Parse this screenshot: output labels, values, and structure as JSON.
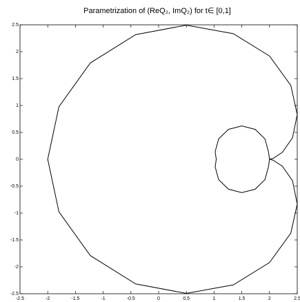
{
  "chart_data": {
    "type": "line",
    "title": "Parametrization of (ReQ₂, ImQ₂) for t∈ [0,1]",
    "x": [
      2,
      2.066,
      2.232,
      2.414,
      2.5,
      2.384,
      2,
      1.348,
      0.5,
      -0.414,
      -1.232,
      -1.798,
      -2,
      -1.798,
      -1.232,
      -0.414,
      0.5,
      1.348,
      2,
      2.384,
      2.5,
      2.414,
      2.232,
      2.066,
      2,
      null,
      2.0,
      1.981,
      1.917,
      1.741,
      1.5,
      1.26,
      1.083,
      1.019,
      1.04,
      1.019,
      1.083,
      1.26,
      1.5,
      1.741,
      1.917,
      1.981,
      2.0
    ],
    "series": [
      {
        "color": "#000000",
        "values": [
          0,
          0.017,
          0.129,
          0.398,
          0.831,
          1.374,
          1.92,
          2.335,
          2.494,
          2.318,
          1.791,
          0.977,
          0,
          -0.977,
          -1.791,
          -2.318,
          -2.494,
          -2.335,
          -1.92,
          -1.374,
          -0.831,
          -0.398,
          -0.129,
          -0.017,
          0,
          null,
          0,
          0.139,
          0.38,
          0.556,
          0.62,
          0.556,
          0.38,
          0.139,
          0,
          -0.139,
          -0.38,
          -0.556,
          -0.62,
          -0.556,
          -0.38,
          -0.139,
          0
        ]
      }
    ],
    "xlim": [
      -2.5,
      2.5
    ],
    "ylim": [
      -2.5,
      2.5
    ],
    "xticks": [
      -2.5,
      -2,
      -1.5,
      -1,
      -0.5,
      0,
      0.5,
      1,
      1.5,
      2,
      2.5
    ],
    "yticks": [
      -2.5,
      -2,
      -1.5,
      -1,
      -0.5,
      0,
      0.5,
      1,
      1.5,
      2,
      2.5
    ]
  }
}
